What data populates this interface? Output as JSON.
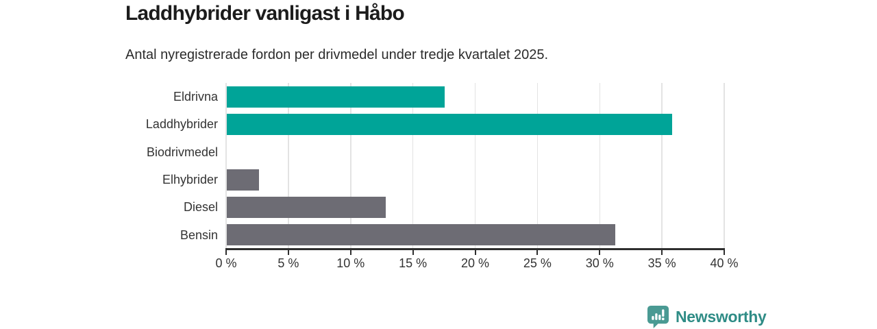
{
  "title": "Laddhybrider vanligast i Håbo",
  "subtitle": "Antal nyregistrerade fordon per drivmedel under tredje kvartalet 2025.",
  "chart_data": {
    "type": "bar",
    "orientation": "horizontal",
    "title": "Laddhybrider vanligast i Håbo",
    "subtitle": "Antal nyregistrerade fordon per drivmedel under tredje kvartalet 2025.",
    "categories": [
      "Eldrivna",
      "Laddhybrider",
      "Biodrivmedel",
      "Elhybrider",
      "Diesel",
      "Bensin"
    ],
    "values": [
      17.5,
      35.8,
      0,
      2.6,
      12.8,
      31.2
    ],
    "unit": "%",
    "xlim": [
      0,
      40
    ],
    "x_ticks": [
      "0 %",
      "5 %",
      "10 %",
      "15 %",
      "20 %",
      "25 %",
      "30 %",
      "35 %",
      "40 %"
    ],
    "bar_colors": [
      "#00a498",
      "#00a498",
      "#6d6c74",
      "#6d6c74",
      "#6d6c74",
      "#6d6c74"
    ],
    "grid": true,
    "legend": false
  },
  "colors": {
    "accent_teal": "#00a498",
    "neutral_gray": "#6d6c74",
    "axis": "#2e2e2e",
    "gridline": "#e3e3e3",
    "title_text": "#1c1c1c",
    "body_text": "#333333",
    "brand_icon": "#4a9a93",
    "brand_text": "#2f8c86"
  },
  "footer": {
    "brand_name": "Newsworthy",
    "logo_icon": "newsworthy-bubble-chart-icon"
  }
}
